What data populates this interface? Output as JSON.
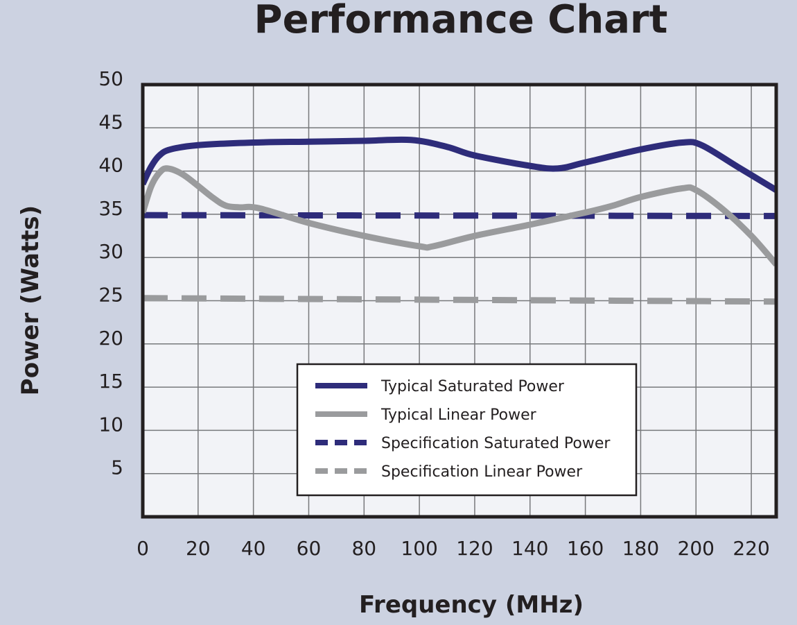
{
  "chart_data": {
    "type": "line",
    "title": "Performance Chart",
    "xlabel": "Frequency (MHz)",
    "ylabel": "Power (Watts)",
    "xlim": [
      0,
      229
    ],
    "ylim": [
      0,
      50
    ],
    "xticks": [
      0,
      20,
      40,
      60,
      80,
      100,
      120,
      140,
      160,
      180,
      200,
      220
    ],
    "yticks": [
      5,
      10,
      15,
      20,
      25,
      30,
      35,
      40,
      45,
      50
    ],
    "grid": true,
    "legend_position": "bottom-center",
    "series": [
      {
        "name": "Typical Saturated Power",
        "color": "#2e2c7a",
        "dash": false,
        "x": [
          0,
          3,
          6,
          10,
          20,
          40,
          60,
          80,
          97,
          110,
          120,
          140,
          150,
          160,
          180,
          195,
          202,
          215,
          229
        ],
        "y": [
          38.5,
          40.5,
          41.8,
          42.5,
          43.0,
          43.3,
          43.4,
          43.5,
          43.6,
          42.8,
          41.8,
          40.6,
          40.3,
          41.0,
          42.5,
          43.3,
          43.0,
          40.5,
          37.8
        ]
      },
      {
        "name": "Typical Linear Power",
        "color": "#9a9b9d",
        "dash": false,
        "x": [
          0,
          3,
          6,
          9,
          15,
          25,
          30,
          35,
          42,
          60,
          80,
          100,
          105,
          120,
          140,
          160,
          170,
          180,
          195,
          200,
          210,
          220,
          229
        ],
        "y": [
          35.2,
          38.2,
          39.8,
          40.3,
          39.5,
          37.0,
          36.0,
          35.8,
          35.7,
          34.0,
          32.5,
          31.3,
          31.3,
          32.5,
          33.8,
          35.2,
          36.0,
          37.0,
          38.0,
          37.8,
          35.5,
          32.5,
          29.2
        ]
      },
      {
        "name": "Specification Saturated Power",
        "color": "#2e2c7a",
        "dash": true,
        "x": [
          0,
          229
        ],
        "y": [
          34.9,
          34.8
        ]
      },
      {
        "name": "Specification Linear Power",
        "color": "#9a9b9d",
        "dash": true,
        "x": [
          0,
          229
        ],
        "y": [
          25.3,
          24.9
        ]
      }
    ]
  }
}
